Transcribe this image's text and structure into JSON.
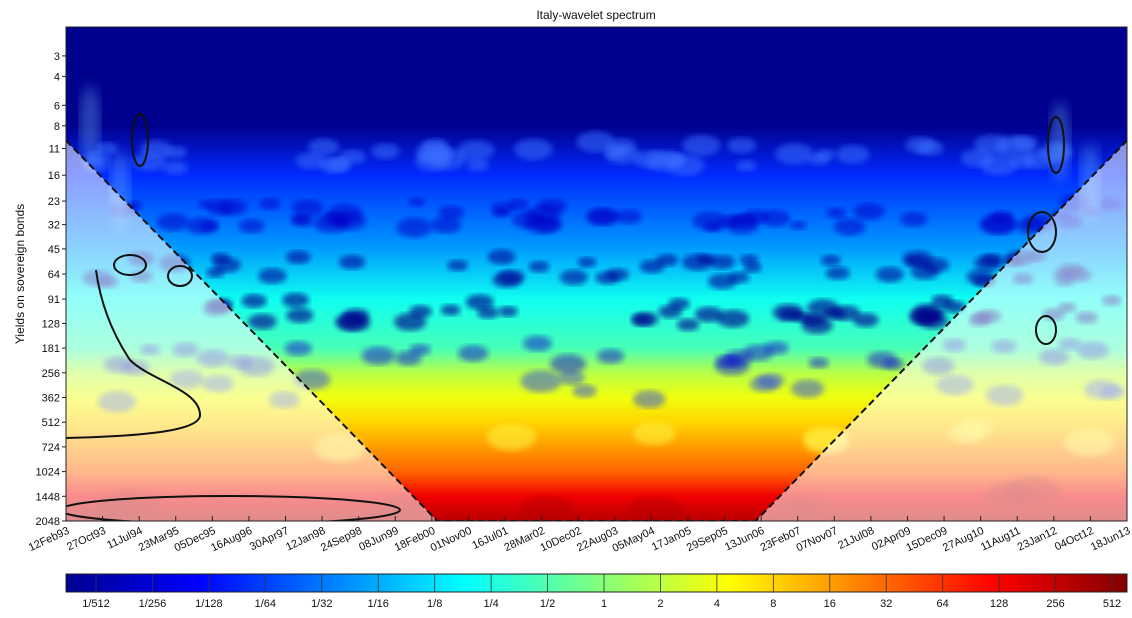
{
  "chart_data": {
    "type": "heatmap",
    "title": "Italy-wavelet spectrum",
    "ylabel": "Yields on sovereign bonds",
    "y_scale": "log2",
    "y_inverted": true,
    "ylim": [
      2,
      2048
    ],
    "y_ticks": [
      "3",
      "4",
      "6",
      "8",
      "11",
      "16",
      "23",
      "32",
      "45",
      "64",
      "91",
      "128",
      "181",
      "256",
      "362",
      "512",
      "724",
      "1024",
      "1448",
      "2048"
    ],
    "y_tick_values": [
      3,
      4,
      6,
      8,
      11,
      16,
      23,
      32,
      45,
      64,
      91,
      128,
      181,
      256,
      362,
      512,
      724,
      1024,
      1448,
      2048
    ],
    "xlim": [
      "12Feb93",
      "18Jun13"
    ],
    "x_ticks": [
      "12Feb93",
      "27Oct93",
      "11Jul94",
      "23Mar95",
      "05Dec95",
      "16Aug96",
      "30Apr97",
      "12Jan98",
      "24Sep98",
      "08Jun99",
      "18Feb00",
      "01Nov00",
      "16Jul01",
      "28Mar02",
      "10Dec02",
      "22Aug03",
      "05May04",
      "17Jan05",
      "29Sep05",
      "13Jun06",
      "23Feb07",
      "07Nov07",
      "21Jul08",
      "02Apr09",
      "15Dec09",
      "27Aug10",
      "11Aug11",
      "23Jan12",
      "04Oct12",
      "18Jun13"
    ],
    "colorbar": {
      "scale": "log2",
      "labels": [
        "1/512",
        "1/256",
        "1/128",
        "1/64",
        "1/32",
        "1/16",
        "1/8",
        "1/4",
        "1/2",
        "1",
        "2",
        "4",
        "8",
        "16",
        "32",
        "64",
        "128",
        "256",
        "512"
      ],
      "colors": [
        "#00008f",
        "#0000ff",
        "#00ffff",
        "#ffff00",
        "#ff0000",
        "#800000"
      ]
    },
    "cone_of_influence": true,
    "significance_contours": true,
    "power_by_scale": [
      {
        "scale": 2,
        "power": "1/512"
      },
      {
        "scale": 8,
        "power": "1/512"
      },
      {
        "scale": 16,
        "power": "1/64"
      },
      {
        "scale": 45,
        "power": "1/16"
      },
      {
        "scale": 91,
        "power": "1/4"
      },
      {
        "scale": 181,
        "power": "1/2"
      },
      {
        "scale": 256,
        "power": "2"
      },
      {
        "scale": 362,
        "power": "4"
      },
      {
        "scale": 512,
        "power": "8"
      },
      {
        "scale": 724,
        "power": "16"
      },
      {
        "scale": 1024,
        "power": "32"
      },
      {
        "scale": 1448,
        "power": "128"
      },
      {
        "scale": 2048,
        "power": "256"
      }
    ]
  }
}
